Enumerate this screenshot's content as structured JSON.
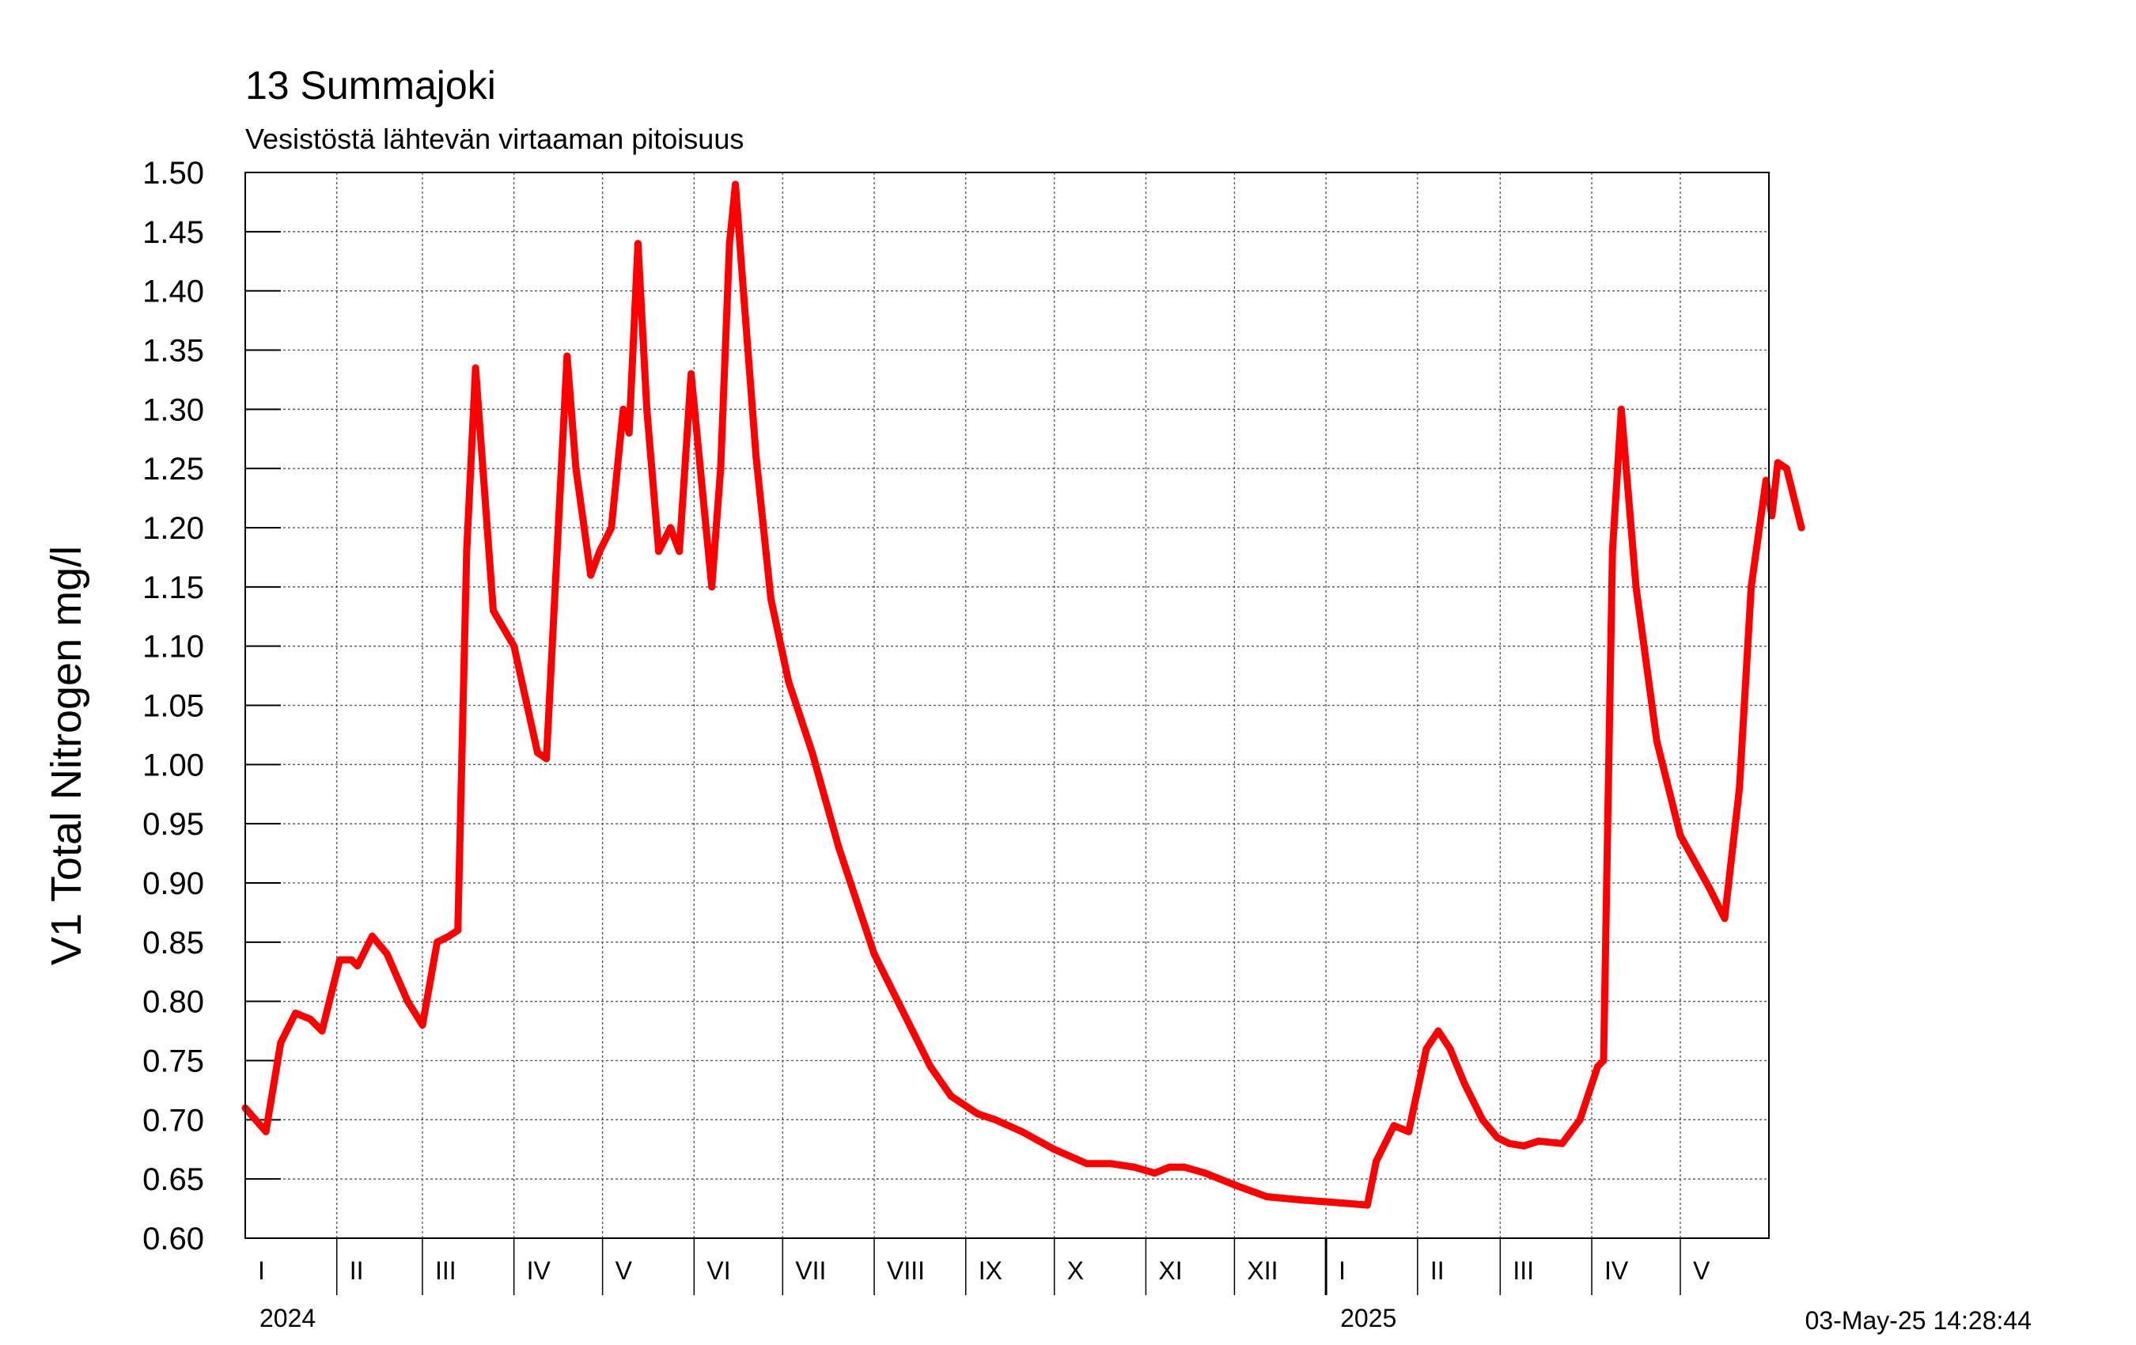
{
  "chart_data": {
    "type": "line",
    "title": "13 Summajoki",
    "subtitle": "Vesistöstä lähtevän virtaaman pitoisuus",
    "ylabel": "V1 Total Nitrogen mg/l",
    "xlabel": "",
    "ylim": [
      0.6,
      1.5
    ],
    "xlim": [
      "2024-01-01",
      "2025-05-31"
    ],
    "yticks": [
      "0.60",
      "0.65",
      "0.70",
      "0.75",
      "0.80",
      "0.85",
      "0.90",
      "0.95",
      "1.00",
      "1.05",
      "1.10",
      "1.15",
      "1.20",
      "1.25",
      "1.30",
      "1.35",
      "1.40",
      "1.45",
      "1.50"
    ],
    "grid": true,
    "x_months": [
      "I",
      "II",
      "III",
      "IV",
      "V",
      "VI",
      "VII",
      "VIII",
      "IX",
      "X",
      "XI",
      "XII",
      "I",
      "II",
      "III",
      "IV",
      "V"
    ],
    "x_years": [
      "2024",
      "2025"
    ],
    "timestamp": "03-May-25 14:28:44",
    "line_color": "#ff0000",
    "series": [
      {
        "points": [
          [
            "2024-01-01",
            0.71
          ],
          [
            "2024-01-08",
            0.69
          ],
          [
            "2024-01-13",
            0.765
          ],
          [
            "2024-01-18",
            0.79
          ],
          [
            "2024-01-23",
            0.785
          ],
          [
            "2024-01-27",
            0.775
          ],
          [
            "2024-02-02",
            0.835
          ],
          [
            "2024-02-06",
            0.835
          ],
          [
            "2024-02-08",
            0.83
          ],
          [
            "2024-02-13",
            0.855
          ],
          [
            "2024-02-18",
            0.84
          ],
          [
            "2024-02-25",
            0.8
          ],
          [
            "2024-03-01",
            0.78
          ],
          [
            "2024-03-06",
            0.85
          ],
          [
            "2024-03-10",
            0.855
          ],
          [
            "2024-03-13",
            0.86
          ],
          [
            "2024-03-16",
            1.18
          ],
          [
            "2024-03-19",
            1.335
          ],
          [
            "2024-03-25",
            1.13
          ],
          [
            "2024-04-01",
            1.1
          ],
          [
            "2024-04-09",
            1.01
          ],
          [
            "2024-04-12",
            1.005
          ],
          [
            "2024-04-16",
            1.2
          ],
          [
            "2024-04-19",
            1.345
          ],
          [
            "2024-04-22",
            1.25
          ],
          [
            "2024-04-27",
            1.16
          ],
          [
            "2024-04-30",
            1.18
          ],
          [
            "2024-05-04",
            1.2
          ],
          [
            "2024-05-08",
            1.3
          ],
          [
            "2024-05-10",
            1.28
          ],
          [
            "2024-05-13",
            1.44
          ],
          [
            "2024-05-16",
            1.3
          ],
          [
            "2024-05-20",
            1.18
          ],
          [
            "2024-05-24",
            1.2
          ],
          [
            "2024-05-27",
            1.18
          ],
          [
            "2024-05-31",
            1.33
          ],
          [
            "2024-06-07",
            1.15
          ],
          [
            "2024-06-10",
            1.25
          ],
          [
            "2024-06-13",
            1.44
          ],
          [
            "2024-06-15",
            1.49
          ],
          [
            "2024-06-18",
            1.39
          ],
          [
            "2024-06-22",
            1.26
          ],
          [
            "2024-06-27",
            1.14
          ],
          [
            "2024-07-03",
            1.07
          ],
          [
            "2024-07-11",
            1.01
          ],
          [
            "2024-07-20",
            0.93
          ],
          [
            "2024-08-01",
            0.84
          ],
          [
            "2024-08-10",
            0.795
          ],
          [
            "2024-08-20",
            0.745
          ],
          [
            "2024-08-27",
            0.72
          ],
          [
            "2024-09-05",
            0.705
          ],
          [
            "2024-09-11",
            0.7
          ],
          [
            "2024-09-20",
            0.69
          ],
          [
            "2024-10-01",
            0.675
          ],
          [
            "2024-10-12",
            0.663
          ],
          [
            "2024-10-20",
            0.663
          ],
          [
            "2024-10-28",
            0.66
          ],
          [
            "2024-11-04",
            0.655
          ],
          [
            "2024-11-09",
            0.66
          ],
          [
            "2024-11-14",
            0.66
          ],
          [
            "2024-11-21",
            0.655
          ],
          [
            "2024-12-01",
            0.645
          ],
          [
            "2024-12-12",
            0.635
          ],
          [
            "2024-12-25",
            0.632
          ],
          [
            "2025-01-05",
            0.63
          ],
          [
            "2025-01-15",
            0.628
          ],
          [
            "2025-01-18",
            0.665
          ],
          [
            "2025-01-24",
            0.695
          ],
          [
            "2025-01-29",
            0.69
          ],
          [
            "2025-02-04",
            0.76
          ],
          [
            "2025-02-08",
            0.775
          ],
          [
            "2025-02-12",
            0.76
          ],
          [
            "2025-02-17",
            0.73
          ],
          [
            "2025-02-23",
            0.7
          ],
          [
            "2025-02-28",
            0.685
          ],
          [
            "2025-03-04",
            0.68
          ],
          [
            "2025-03-09",
            0.678
          ],
          [
            "2025-03-14",
            0.682
          ],
          [
            "2025-03-22",
            0.68
          ],
          [
            "2025-03-28",
            0.7
          ],
          [
            "2025-04-03",
            0.745
          ],
          [
            "2025-04-05",
            0.75
          ],
          [
            "2025-04-08",
            1.18
          ],
          [
            "2025-04-11",
            1.3
          ],
          [
            "2025-04-16",
            1.15
          ],
          [
            "2025-04-23",
            1.02
          ],
          [
            "2025-05-01",
            0.94
          ],
          [
            "2025-05-11",
            0.895
          ],
          [
            "2025-05-16",
            0.87
          ],
          [
            "2025-05-21",
            0.98
          ],
          [
            "2025-05-25",
            1.15
          ],
          [
            "2025-05-30",
            1.24
          ],
          [
            "2025-06-01",
            1.21
          ],
          [
            "2025-06-03",
            1.255
          ],
          [
            "2025-06-06",
            1.25
          ],
          [
            "2025-06-11",
            1.2
          ]
        ]
      }
    ]
  }
}
